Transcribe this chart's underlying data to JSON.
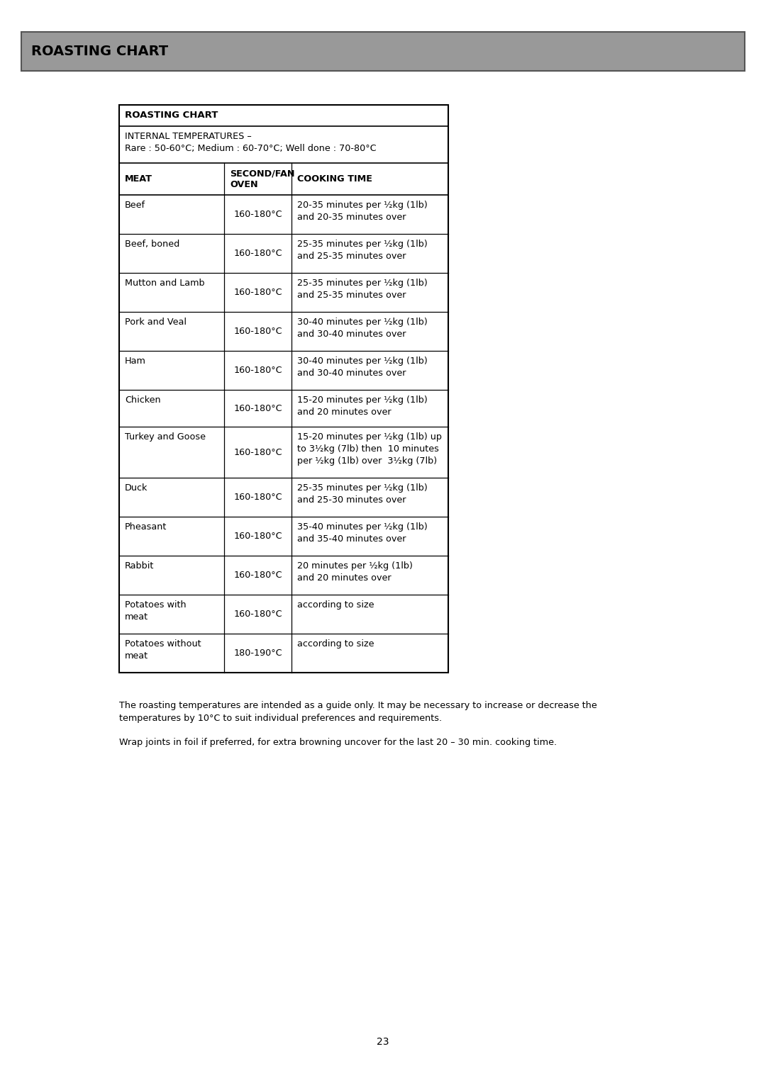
{
  "page_title": "ROASTING CHART",
  "header_bg": "#999999",
  "header_text_color": "#000000",
  "table_title": "ROASTING CHART",
  "internal_temp_line1": "INTERNAL TEMPERATURES –",
  "internal_temp_line2": "Rare : 50-60°C; Medium : 60-70°C; Well done : 70-80°C",
  "col_headers": [
    "MEAT",
    "SECOND/FAN\nOVEN",
    "COOKING TIME"
  ],
  "rows": [
    [
      "Beef",
      "160-180°C",
      "20-35 minutes per ½kg (1lb)\nand 20-35 minutes over"
    ],
    [
      "Beef, boned",
      "160-180°C",
      "25-35 minutes per ½kg (1lb)\nand 25-35 minutes over"
    ],
    [
      "Mutton and Lamb",
      "160-180°C",
      "25-35 minutes per ½kg (1lb)\nand 25-35 minutes over"
    ],
    [
      "Pork and Veal",
      "160-180°C",
      "30-40 minutes per ½kg (1lb)\nand 30-40 minutes over"
    ],
    [
      "Ham",
      "160-180°C",
      "30-40 minutes per ½kg (1lb)\nand 30-40 minutes over"
    ],
    [
      "Chicken",
      "160-180°C",
      "15-20 minutes per ½kg (1lb)\nand 20 minutes over"
    ],
    [
      "Turkey and Goose",
      "160-180°C",
      "15-20 minutes per ½kg (1lb) up\nto 3½kg (7lb) then  10 minutes\nper ½kg (1lb) over  3½kg (7lb)"
    ],
    [
      "Duck",
      "160-180°C",
      "25-35 minutes per ½kg (1lb)\nand 25-30 minutes over"
    ],
    [
      "Pheasant",
      "160-180°C",
      "35-40 minutes per ½kg (1lb)\nand 35-40 minutes over"
    ],
    [
      "Rabbit",
      "160-180°C",
      "20 minutes per ½kg (1lb)\nand 20 minutes over"
    ],
    [
      "Potatoes with\nmeat",
      "160-180°C",
      "according to size"
    ],
    [
      "Potatoes without\nmeat",
      "180-190°C",
      "according to size"
    ]
  ],
  "footnote1": "The roasting temperatures are intended as a guide only. It may be necessary to increase or decrease the\ntemperatures by 10°C to suit individual preferences and requirements.",
  "footnote2": "Wrap joints in foil if preferred, for extra browning uncover for the last 20 – 30 min. cooking time.",
  "page_number": "23",
  "bg_color": "#ffffff",
  "table_border_color": "#000000"
}
